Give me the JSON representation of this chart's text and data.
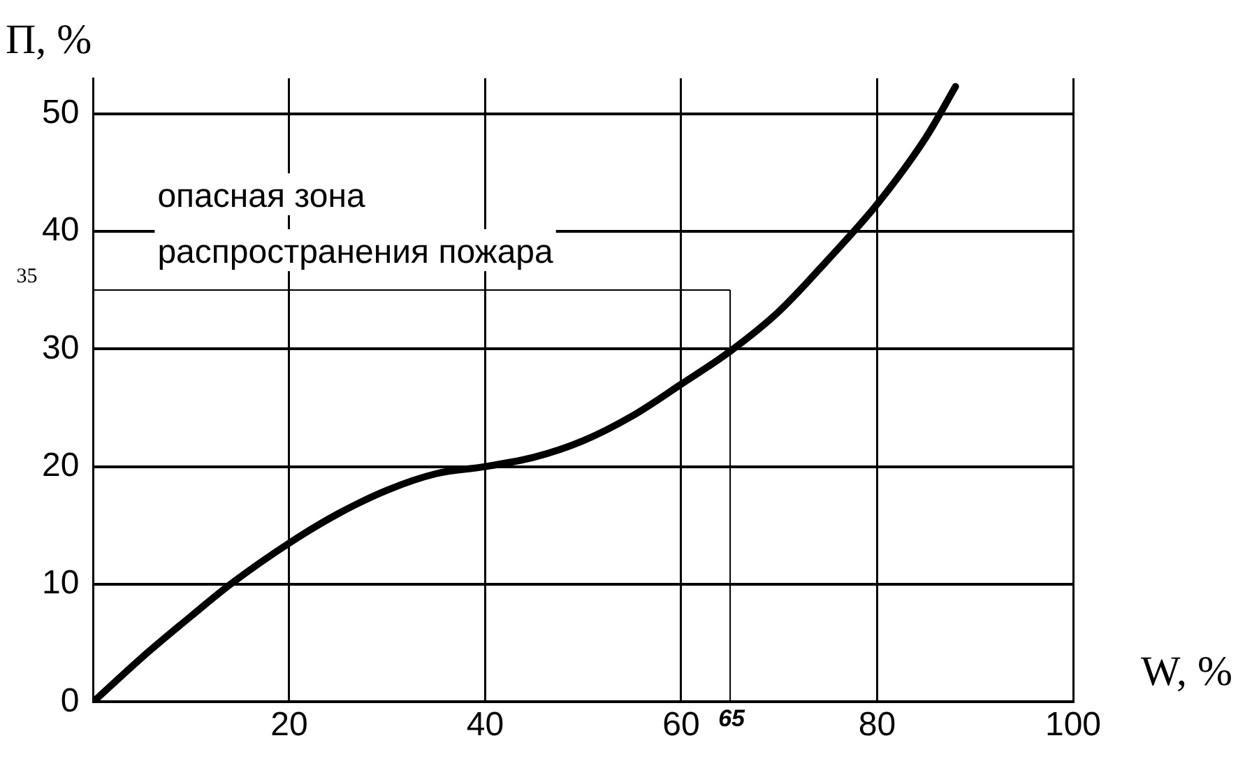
{
  "chart_data": {
    "type": "line",
    "xlabel": "W, %",
    "ylabel": "П, %",
    "x": [
      0,
      5,
      10,
      14,
      20,
      25,
      30,
      35,
      40,
      45,
      50,
      55,
      60,
      65,
      70,
      75,
      80,
      85,
      88
    ],
    "series": [
      {
        "color": "#000000",
        "values": [
          0,
          3.8,
          7.3,
          10,
          13.5,
          16,
          18,
          19.4,
          20,
          20.8,
          22.2,
          24.3,
          27,
          29.8,
          33.2,
          37.6,
          42.3,
          48,
          52.3
        ]
      }
    ],
    "xlim": [
      0,
      100
    ],
    "xticks": [
      {
        "value": 0,
        "label": null
      },
      20,
      40,
      60,
      80,
      100
    ],
    "ylim": [
      0,
      53
    ],
    "yticks": [
      0,
      10,
      20,
      30,
      40,
      50
    ],
    "grid": true,
    "marker": "none",
    "line_style": "solid",
    "ref_lines": [
      {
        "axis": "y",
        "value": 35,
        "label": "35"
      },
      {
        "axis": "x",
        "value": 65,
        "label": "65"
      }
    ],
    "annotations": [
      "опасная зона",
      "распространения пожара"
    ]
  }
}
